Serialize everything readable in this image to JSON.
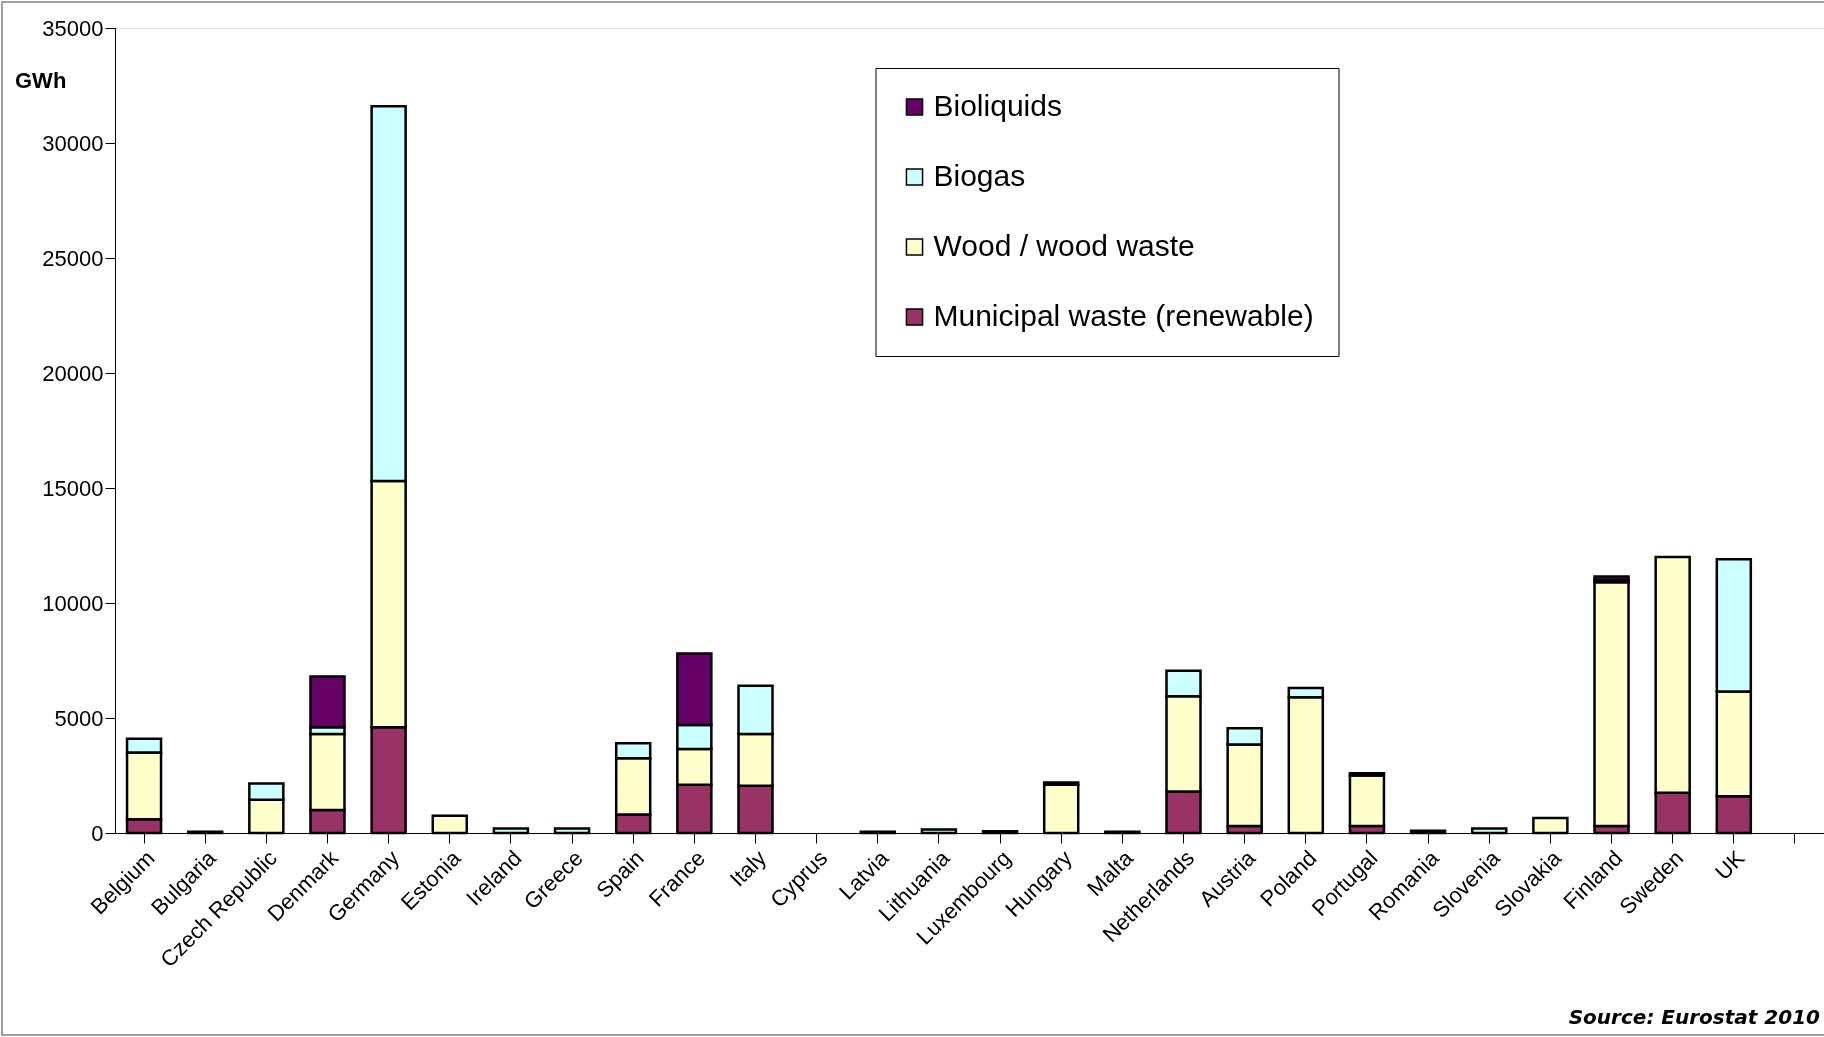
{
  "chart_data": {
    "type": "bar",
    "stacked": true,
    "ylabel": "GWh",
    "categories": [
      "Belgium",
      "Bulgaria",
      "Czech Republic",
      "Denmark",
      "Germany",
      "Estonia",
      "Ireland",
      "Greece",
      "Spain",
      "France",
      "Italy",
      "Cyprus",
      "Latvia",
      "Lithuania",
      "Luxembourg",
      "Hungary",
      "Malta",
      "Netherlands",
      "Austria",
      "Poland",
      "Portugal",
      "Romania",
      "Slovenia",
      "Slovakia",
      "Finland",
      "Sweden",
      "UK",
      null
    ],
    "series": [
      {
        "name": "Municipal waste (renewable)",
        "color": "#993366",
        "values": [
          600,
          0,
          null,
          1000,
          4600,
          0,
          null,
          0,
          800,
          2100,
          2050,
          0,
          0,
          0,
          0,
          null,
          0,
          1800,
          300,
          0,
          300,
          0,
          0,
          0,
          300,
          1750,
          1600,
          null
        ]
      },
      {
        "name": "Wood / wood waste",
        "color": "#ffffcc",
        "values": [
          2900,
          50,
          1450,
          3300,
          10700,
          750,
          0,
          0,
          2450,
          1550,
          2250,
          0,
          0,
          0,
          0,
          2100,
          0,
          4150,
          3550,
          5900,
          2200,
          0,
          0,
          650,
          10600,
          10250,
          4550,
          null
        ]
      },
      {
        "name": "Biogas",
        "color": "#ccffff",
        "values": [
          600,
          0,
          700,
          300,
          16300,
          0,
          200,
          200,
          650,
          1050,
          2100,
          0,
          50,
          150,
          80,
          100,
          50,
          1100,
          700,
          400,
          100,
          100,
          200,
          0,
          100,
          0,
          5750,
          null
        ]
      },
      {
        "name": "Bioliquids",
        "color": "#660066",
        "values": [
          0,
          0,
          0,
          2200,
          0,
          0,
          0,
          0,
          0,
          3100,
          0,
          0,
          0,
          0,
          0,
          0,
          0,
          0,
          0,
          0,
          0,
          0,
          0,
          0,
          150,
          0,
          0,
          null
        ]
      }
    ],
    "ylim": [
      0,
      35000
    ],
    "yticks": [
      0,
      5000,
      10000,
      15000,
      20000,
      25000,
      30000,
      35000
    ],
    "grid": false,
    "legend": "top right",
    "annotations": [
      "Source: Eurostat 2010"
    ]
  }
}
